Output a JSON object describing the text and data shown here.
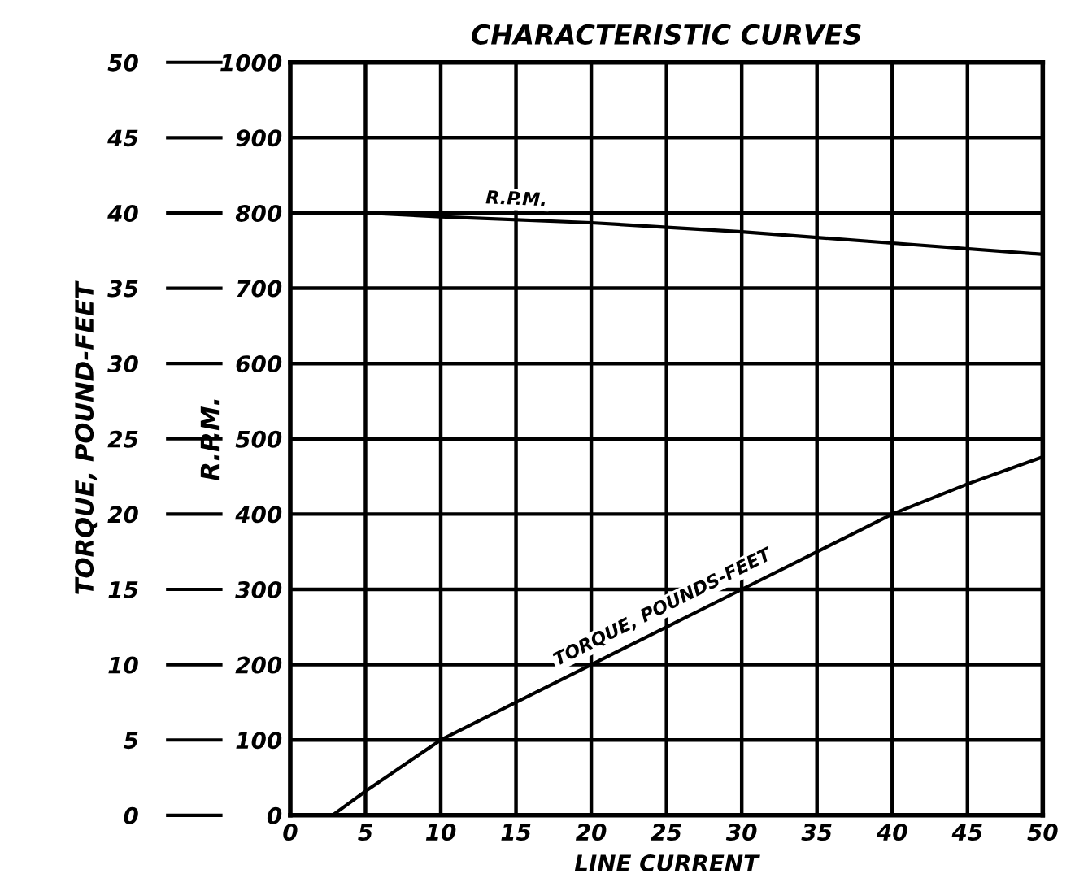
{
  "chart_data": {
    "type": "line",
    "title": "CHARACTERISTIC CURVES",
    "xlabel": "LINE CURRENT",
    "ylabel": "R.P.M.",
    "y2label": "TORQUE, POUND-FEET",
    "xlim": [
      0,
      50
    ],
    "xticks": [
      0,
      5,
      10,
      15,
      20,
      25,
      30,
      35,
      40,
      45,
      50
    ],
    "ylim": [
      0,
      1000
    ],
    "yticks": [
      0,
      100,
      200,
      300,
      400,
      500,
      600,
      700,
      800,
      900,
      1000
    ],
    "y2lim": [
      0,
      50
    ],
    "y2ticks": [
      0,
      5,
      10,
      15,
      20,
      25,
      30,
      35,
      40,
      45,
      50
    ],
    "grid": true,
    "legend": false,
    "marker": "none",
    "line_style": "solid",
    "series": [
      {
        "name": "R.P.M.",
        "color": "#000000",
        "x": [
          0,
          5,
          10,
          20,
          30,
          40,
          50
        ],
        "values": [
          800,
          800,
          795,
          787,
          775,
          760,
          745
        ]
      },
      {
        "name": "TORQUE, POUNDS-FEET",
        "color": "#000000",
        "axis": "y2",
        "x": [
          2.8,
          5,
          10,
          20,
          30,
          40,
          45,
          50
        ],
        "values": [
          0,
          1.6,
          5,
          10,
          15,
          20,
          22,
          23.8
        ]
      }
    ]
  }
}
